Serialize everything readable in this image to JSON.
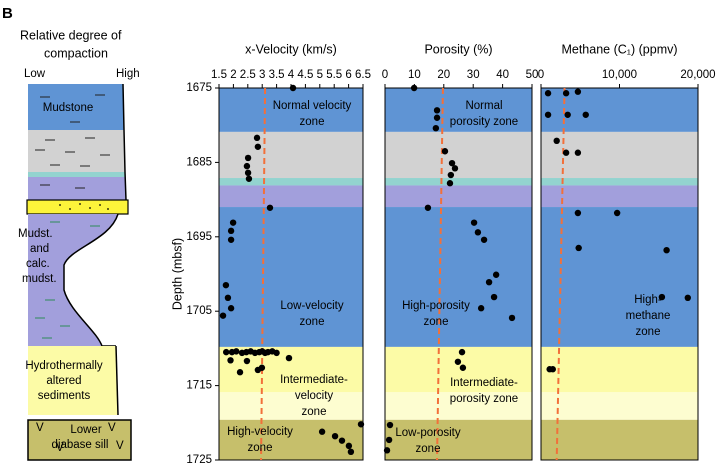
{
  "panel_label": "B",
  "lithology": {
    "title_lines": [
      "Relative degree of",
      "compaction"
    ],
    "low": "Low",
    "high": "High",
    "units": [
      {
        "lines": [
          "Mudstone"
        ]
      },
      {
        "lines": [
          "Mudst.",
          "and",
          "calc.",
          "mudst."
        ]
      },
      {
        "lines": [
          "Hydrothermally",
          "altered",
          "sediments"
        ]
      },
      {
        "lines": [
          "Lower",
          "diabase sill"
        ]
      }
    ],
    "symbols": [
      "V",
      "V",
      "V",
      "V"
    ]
  },
  "depth_zones": [
    {
      "top": 1675,
      "bottom": 1680.9,
      "color": "#5f94d4"
    },
    {
      "top": 1680.9,
      "bottom": 1687.1,
      "color": "#d2d2d2"
    },
    {
      "top": 1687.1,
      "bottom": 1688.1,
      "color": "#93d3cf"
    },
    {
      "top": 1688.1,
      "bottom": 1691,
      "color": "#a29fdc"
    },
    {
      "top": 1691,
      "bottom": 1709.8,
      "color": "#5f94d4"
    },
    {
      "top": 1709.8,
      "bottom": 1715.9,
      "color": "#fcfba6"
    },
    {
      "top": 1715.9,
      "bottom": 1719.6,
      "color": "#fdfdd0"
    },
    {
      "top": 1719.6,
      "bottom": 1725,
      "color": "#c6bf6b"
    }
  ],
  "chart_data": [
    {
      "type": "scatter",
      "title": "x-Velocity (km/s)",
      "ylabel": "Depth (mbsf)",
      "xlim": [
        1.5,
        6.5
      ],
      "xticks": [
        1.5,
        2,
        2.5,
        3,
        3.5,
        4,
        4.5,
        5,
        5.5,
        6,
        6.5
      ],
      "ylim": [
        1725,
        1675
      ],
      "yticks": [
        1675,
        1685,
        1695,
        1705,
        1715,
        1725
      ],
      "color": "#000000",
      "x": [
        4.07,
        2.82,
        2.85,
        2.51,
        2.47,
        2.51,
        2.54,
        3.27,
        1.99,
        1.92,
        1.92,
        1.74,
        1.81,
        1.92,
        1.64,
        1.75,
        1.95,
        2.1,
        2.3,
        2.45,
        2.6,
        2.75,
        2.9,
        3.0,
        3.1,
        3.2,
        3.35,
        3.5,
        1.9,
        2.23,
        2.85,
        2.99,
        3.93,
        2.47,
        6.43,
        5.08,
        5.53,
        5.77,
        6.01,
        6.08
      ],
      "y": [
        1675,
        1681.7,
        1682.9,
        1684.4,
        1685.5,
        1686.4,
        1687.2,
        1691.1,
        1693.1,
        1694.2,
        1695.4,
        1701.5,
        1703.2,
        1704.6,
        1705.6,
        1710.5,
        1710.5,
        1710.4,
        1710.6,
        1710.5,
        1710.4,
        1710.6,
        1710.5,
        1710.4,
        1710.6,
        1710.5,
        1710.4,
        1710.6,
        1711.6,
        1713.2,
        1712.9,
        1712.6,
        1711.3,
        1711.7,
        1720.2,
        1721.2,
        1721.8,
        1722.4,
        1723.1,
        1723.9
      ],
      "trend": {
        "x": [
          3.1,
          2.96
        ],
        "y": [
          1675,
          1725
        ],
        "color": "#f2703a"
      },
      "annotations": [
        [
          "Normal velocity",
          "zone"
        ],
        [
          "Low-velocity",
          "zone"
        ],
        [
          "Intermediate-",
          "velocity",
          "zone"
        ],
        [
          "High-velocity",
          "zone"
        ]
      ]
    },
    {
      "type": "scatter",
      "title": "Porosity (%)",
      "xlim": [
        0,
        50
      ],
      "xticks": [
        0,
        10,
        20,
        30,
        40,
        50
      ],
      "ylim": [
        1725,
        1675
      ],
      "color": "#000000",
      "x": [
        9.9,
        17.7,
        17.7,
        17.3,
        20.4,
        22.8,
        23.8,
        22.4,
        22.1,
        14.6,
        30.3,
        31.6,
        33.7,
        37.8,
        35.4,
        37.1,
        32.7,
        43.2,
        26.2,
        24.8,
        26.5,
        1.7,
        1.4,
        0.7
      ],
      "y": [
        1675,
        1678,
        1679,
        1680.4,
        1683.5,
        1685.1,
        1685.8,
        1686.7,
        1687.8,
        1691.1,
        1693.1,
        1694.4,
        1695.4,
        1700.1,
        1701.1,
        1703.1,
        1704.6,
        1705.9,
        1710.5,
        1711.8,
        1712.6,
        1720.3,
        1722.3,
        1723.7
      ],
      "trend": {
        "x": [
          19.7,
          17.7
        ],
        "y": [
          1675,
          1725
        ],
        "color": "#f2703a"
      },
      "annotations": [
        [
          "Normal",
          "porosity zone"
        ],
        [
          "High-porosity",
          "zone"
        ],
        [
          "Intermediate-",
          "porosity zone"
        ],
        [
          "Low-porosity",
          "zone"
        ]
      ]
    },
    {
      "type": "scatter",
      "title": "Methane (C₁) (ppmv)",
      "xlim": [
        0,
        20000
      ],
      "xticks": [
        0,
        {
          "value": 10000,
          "label": "10,000"
        },
        {
          "value": 20000,
          "label": "20,000"
        }
      ],
      "ylim": [
        1725,
        1675
      ],
      "color": "#000000",
      "x": [
        900,
        3200,
        4700,
        900,
        3400,
        5700,
        2000,
        3200,
        4700,
        4700,
        9700,
        4800,
        16000,
        15400,
        18700,
        1100,
        1500
      ],
      "y": [
        1675.7,
        1675.7,
        1675.5,
        1678.6,
        1678.6,
        1678.6,
        1682.1,
        1683.7,
        1683.7,
        1691.8,
        1691.8,
        1696.5,
        1696.8,
        1703.1,
        1703.2,
        1712.8,
        1712.8
      ],
      "trend": {
        "x": [
          3000,
          2000
        ],
        "y": [
          1675,
          1725
        ],
        "color": "#f2703a"
      },
      "annotations": [
        [
          "High-",
          "methane",
          "zone"
        ]
      ]
    }
  ]
}
